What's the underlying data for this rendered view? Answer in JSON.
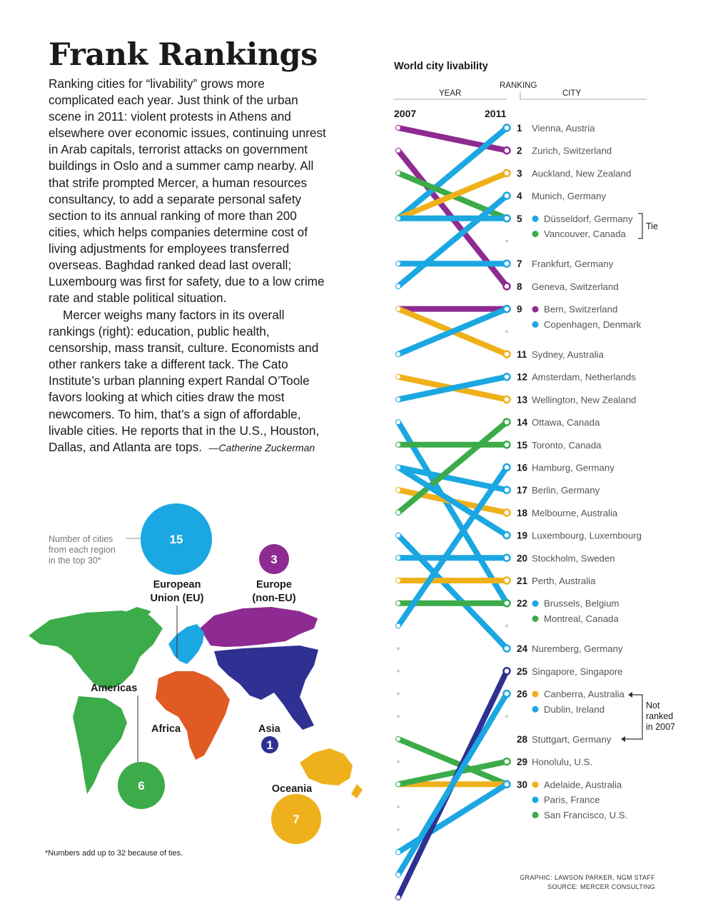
{
  "article": {
    "headline": "Frank Rankings",
    "paragraph1": "Ranking cities for “livability” grows more complicated each year. Just think of the urban scene in 2011: violent protests in Athens and elsewhere over economic issues, continuing unrest in Arab capitals, terrorist attacks on government buildings in Oslo and a summer camp nearby. All that strife prompted Mercer, a human resources consultancy, to add a separate personal safety section to its annual ranking of more than 200 cities, which helps companies determine cost of living adjustments for employees transferred overseas. Baghdad ranked dead last overall; Luxembourg was first for safety, due to a low crime rate and stable political situation.",
    "paragraph2": "Mercer weighs many factors in its overall rankings (right): education, public health, censorship, mass transit, culture. Economists and other rankers take a different tack. The Cato Institute’s urban planning expert Randal O’Toole favors looking at which cities draw the most newcomers. To him, that’s a sign of affordable, livable cities. He reports that in the U.S., Houston, Dallas, and Atlanta are tops.",
    "byline": "—Catherine Zuckerman"
  },
  "ranking_chart": {
    "title": "World city livability",
    "header_year": "YEAR",
    "header_ranking": "RANKING",
    "header_city": "CITY",
    "year_left": "2007",
    "year_right": "2011",
    "tie_label": "Tie",
    "not_ranked_label": [
      "Not",
      "ranked",
      "in 2007"
    ],
    "region_colors": {
      "eu": "#1ba7e1",
      "europe_non_eu": "#8e2a91",
      "americas": "#3cab49",
      "oceania": "#efb11b",
      "asia": "#2e3192",
      "africa": "#e05a24"
    },
    "labels": [
      {
        "rank": "1",
        "cities": [
          {
            "name": "Vienna, Austria",
            "region": "eu"
          }
        ]
      },
      {
        "rank": "2",
        "cities": [
          {
            "name": "Zurich, Switzerland",
            "region": "europe_non_eu"
          }
        ]
      },
      {
        "rank": "3",
        "cities": [
          {
            "name": "Auckland, New Zealand",
            "region": "oceania"
          }
        ]
      },
      {
        "rank": "4",
        "cities": [
          {
            "name": "Munich, Germany",
            "region": "eu"
          }
        ]
      },
      {
        "rank": "5",
        "cities": [
          {
            "name": "Düsseldorf, Germany",
            "region": "eu"
          },
          {
            "name": "Vancouver, Canada",
            "region": "americas"
          }
        ]
      },
      {
        "rank": "7",
        "cities": [
          {
            "name": "Frankfurt, Germany",
            "region": "eu"
          }
        ]
      },
      {
        "rank": "8",
        "cities": [
          {
            "name": "Geneva, Switzerland",
            "region": "europe_non_eu"
          }
        ]
      },
      {
        "rank": "9",
        "cities": [
          {
            "name": "Bern, Switzerland",
            "region": "europe_non_eu"
          },
          {
            "name": "Copenhagen, Denmark",
            "region": "eu"
          }
        ]
      },
      {
        "rank": "11",
        "cities": [
          {
            "name": "Sydney, Australia",
            "region": "oceania"
          }
        ]
      },
      {
        "rank": "12",
        "cities": [
          {
            "name": "Amsterdam, Netherlands",
            "region": "eu"
          }
        ]
      },
      {
        "rank": "13",
        "cities": [
          {
            "name": "Wellington, New Zealand",
            "region": "oceania"
          }
        ]
      },
      {
        "rank": "14",
        "cities": [
          {
            "name": "Ottawa, Canada",
            "region": "americas"
          }
        ]
      },
      {
        "rank": "15",
        "cities": [
          {
            "name": "Toronto, Canada",
            "region": "americas"
          }
        ]
      },
      {
        "rank": "16",
        "cities": [
          {
            "name": "Hamburg, Germany",
            "region": "eu"
          }
        ]
      },
      {
        "rank": "17",
        "cities": [
          {
            "name": "Berlin, Germany",
            "region": "eu"
          }
        ]
      },
      {
        "rank": "18",
        "cities": [
          {
            "name": "Melbourne, Australia",
            "region": "oceania"
          }
        ]
      },
      {
        "rank": "19",
        "cities": [
          {
            "name": "Luxembourg, Luxembourg",
            "region": "eu"
          }
        ]
      },
      {
        "rank": "20",
        "cities": [
          {
            "name": "Stockholm, Sweden",
            "region": "eu"
          }
        ]
      },
      {
        "rank": "21",
        "cities": [
          {
            "name": "Perth, Australia",
            "region": "oceania"
          }
        ]
      },
      {
        "rank": "22",
        "cities": [
          {
            "name": "Brussels, Belgium",
            "region": "eu"
          },
          {
            "name": "Montreal, Canada",
            "region": "americas"
          }
        ]
      },
      {
        "rank": "24",
        "cities": [
          {
            "name": "Nuremberg, Germany",
            "region": "eu"
          }
        ]
      },
      {
        "rank": "25",
        "cities": [
          {
            "name": "Singapore, Singapore",
            "region": "asia"
          }
        ]
      },
      {
        "rank": "26",
        "cities": [
          {
            "name": "Canberra, Australia",
            "region": "oceania"
          },
          {
            "name": "Dublin, Ireland",
            "region": "eu"
          }
        ]
      },
      {
        "rank": "28",
        "cities": [
          {
            "name": "Stuttgart, Germany",
            "region": "eu"
          }
        ]
      },
      {
        "rank": "29",
        "cities": [
          {
            "name": "Honolulu, U.S.",
            "region": "americas"
          }
        ]
      },
      {
        "rank": "30",
        "cities": [
          {
            "name": "Adelaide, Australia",
            "region": "oceania"
          },
          {
            "name": "Paris, France",
            "region": "eu"
          },
          {
            "name": "San Francisco, U.S.",
            "region": "americas"
          }
        ]
      }
    ],
    "lines": [
      {
        "r2007": 1,
        "r2011": 2,
        "region": "europe_non_eu"
      },
      {
        "r2007": 2,
        "r2011": 8,
        "region": "europe_non_eu"
      },
      {
        "r2007": 9,
        "r2011": 9,
        "region": "europe_non_eu"
      },
      {
        "r2007": 5,
        "r2011": 1,
        "region": "eu"
      },
      {
        "r2007": 3,
        "r2011": 5,
        "region": "americas"
      },
      {
        "r2007": 5,
        "r2011": 3,
        "region": "oceania"
      },
      {
        "r2007": 5,
        "r2011": 5,
        "region": "eu"
      },
      {
        "r2007": 7,
        "r2011": 7,
        "region": "eu"
      },
      {
        "r2007": 8,
        "r2011": 4,
        "region": "eu"
      },
      {
        "r2007": 9,
        "r2011": 11,
        "region": "oceania"
      },
      {
        "r2007": 11,
        "r2011": 9,
        "region": "eu"
      },
      {
        "r2007": 12,
        "r2011": 13,
        "region": "oceania"
      },
      {
        "r2007": 13,
        "r2011": 12,
        "region": "eu"
      },
      {
        "r2007": 14,
        "r2011": 22,
        "region": "eu"
      },
      {
        "r2007": 15,
        "r2011": 15,
        "region": "americas"
      },
      {
        "r2007": 16,
        "r2011": 17,
        "region": "eu"
      },
      {
        "r2007": 17,
        "r2011": 18,
        "region": "oceania"
      },
      {
        "r2007": 18,
        "r2011": 14,
        "region": "americas"
      },
      {
        "r2007": 19,
        "r2011": 24,
        "region": "eu"
      },
      {
        "r2007": 20,
        "r2011": 20,
        "region": "eu"
      },
      {
        "r2007": 21,
        "r2011": 21,
        "region": "oceania"
      },
      {
        "r2007": 22,
        "r2011": 22,
        "region": "americas"
      },
      {
        "r2007": 23,
        "r2011": 16,
        "region": "eu"
      },
      {
        "r2007": 16,
        "r2011": 19,
        "region": "eu"
      },
      {
        "r2007": 28,
        "r2011": 30,
        "region": "americas"
      },
      {
        "r2007": 30,
        "r2011": 30,
        "region": "oceania"
      },
      {
        "r2007": 33,
        "r2011": 30,
        "region": "eu"
      },
      {
        "r2007": 30,
        "r2011": 29,
        "region": "americas"
      },
      {
        "r2007": 35,
        "r2011": 25,
        "region": "asia"
      },
      {
        "r2007": 34,
        "r2011": 26,
        "region": "eu"
      }
    ],
    "rows_2007_only": [
      24,
      25,
      26,
      27,
      29,
      31,
      32,
      33,
      34
    ]
  },
  "region_map": {
    "legend_note": [
      "Number of cities",
      "from each region",
      "in the top 30*"
    ],
    "regions": [
      {
        "key": "eu",
        "name_lines": [
          "European",
          "Union (EU)"
        ],
        "count": "15",
        "color": "#1ba7e1"
      },
      {
        "key": "europe_non_eu",
        "name_lines": [
          "Europe",
          "(non-EU)"
        ],
        "count": "3",
        "color": "#8e2a91"
      },
      {
        "key": "americas",
        "name_lines": [
          "Americas"
        ],
        "count": "6",
        "color": "#3cab49"
      },
      {
        "key": "africa",
        "name_lines": [
          "Africa"
        ],
        "count": "",
        "color": "#e05a24"
      },
      {
        "key": "asia",
        "name_lines": [
          "Asia"
        ],
        "count": "1",
        "color": "#2e3192"
      },
      {
        "key": "oceania",
        "name_lines": [
          "Oceania"
        ],
        "count": "7",
        "color": "#efb11b"
      }
    ],
    "footnote": "*Numbers add up to 32 because of ties."
  },
  "credits": {
    "graphic": "GRAPHIC: LAWSON PARKER, NGM STAFF",
    "source": "SOURCE: MERCER CONSULTING"
  }
}
